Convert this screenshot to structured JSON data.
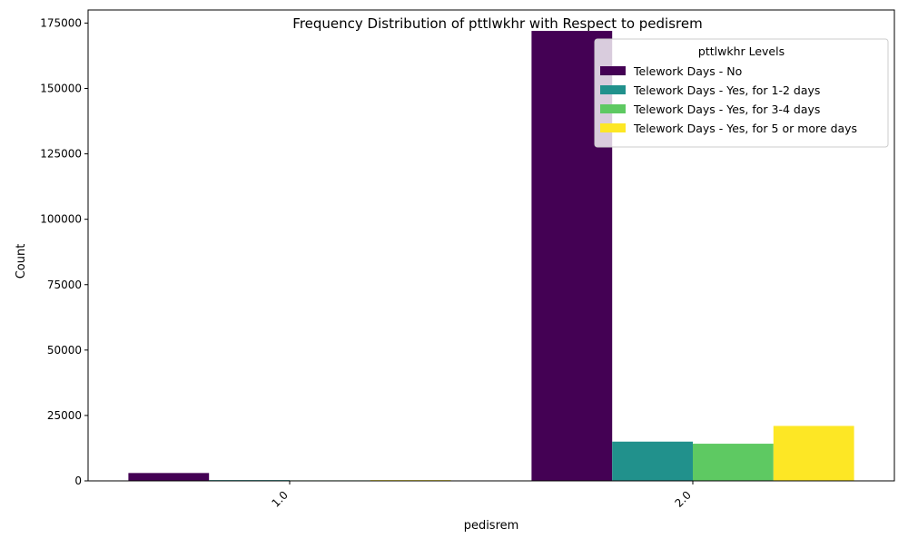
{
  "chart_data": {
    "type": "bar",
    "title": "Frequency Distribution of pttlwkhr with Respect to pedisrem",
    "xlabel": "pedisrem",
    "ylabel": "Count",
    "categories": [
      "1.0",
      "2.0"
    ],
    "ylim": [
      0,
      180000
    ],
    "yticks": [
      0,
      25000,
      50000,
      75000,
      100000,
      125000,
      150000,
      175000
    ],
    "grid": false,
    "legend": {
      "title": "pttlwkhr Levels",
      "placement": "top-right"
    },
    "series": [
      {
        "name": "Telework Days - No",
        "color": "#440154",
        "values": [
          3000,
          172000
        ]
      },
      {
        "name": "Telework Days - Yes, for 1-2 days",
        "color": "#21918c",
        "values": [
          300,
          15000
        ]
      },
      {
        "name": "Telework Days - Yes, for 3-4 days",
        "color": "#5ec962",
        "values": [
          200,
          14200
        ]
      },
      {
        "name": "Telework Days - Yes, for 5 or more days",
        "color": "#fde725",
        "values": [
          300,
          21000
        ]
      }
    ]
  }
}
